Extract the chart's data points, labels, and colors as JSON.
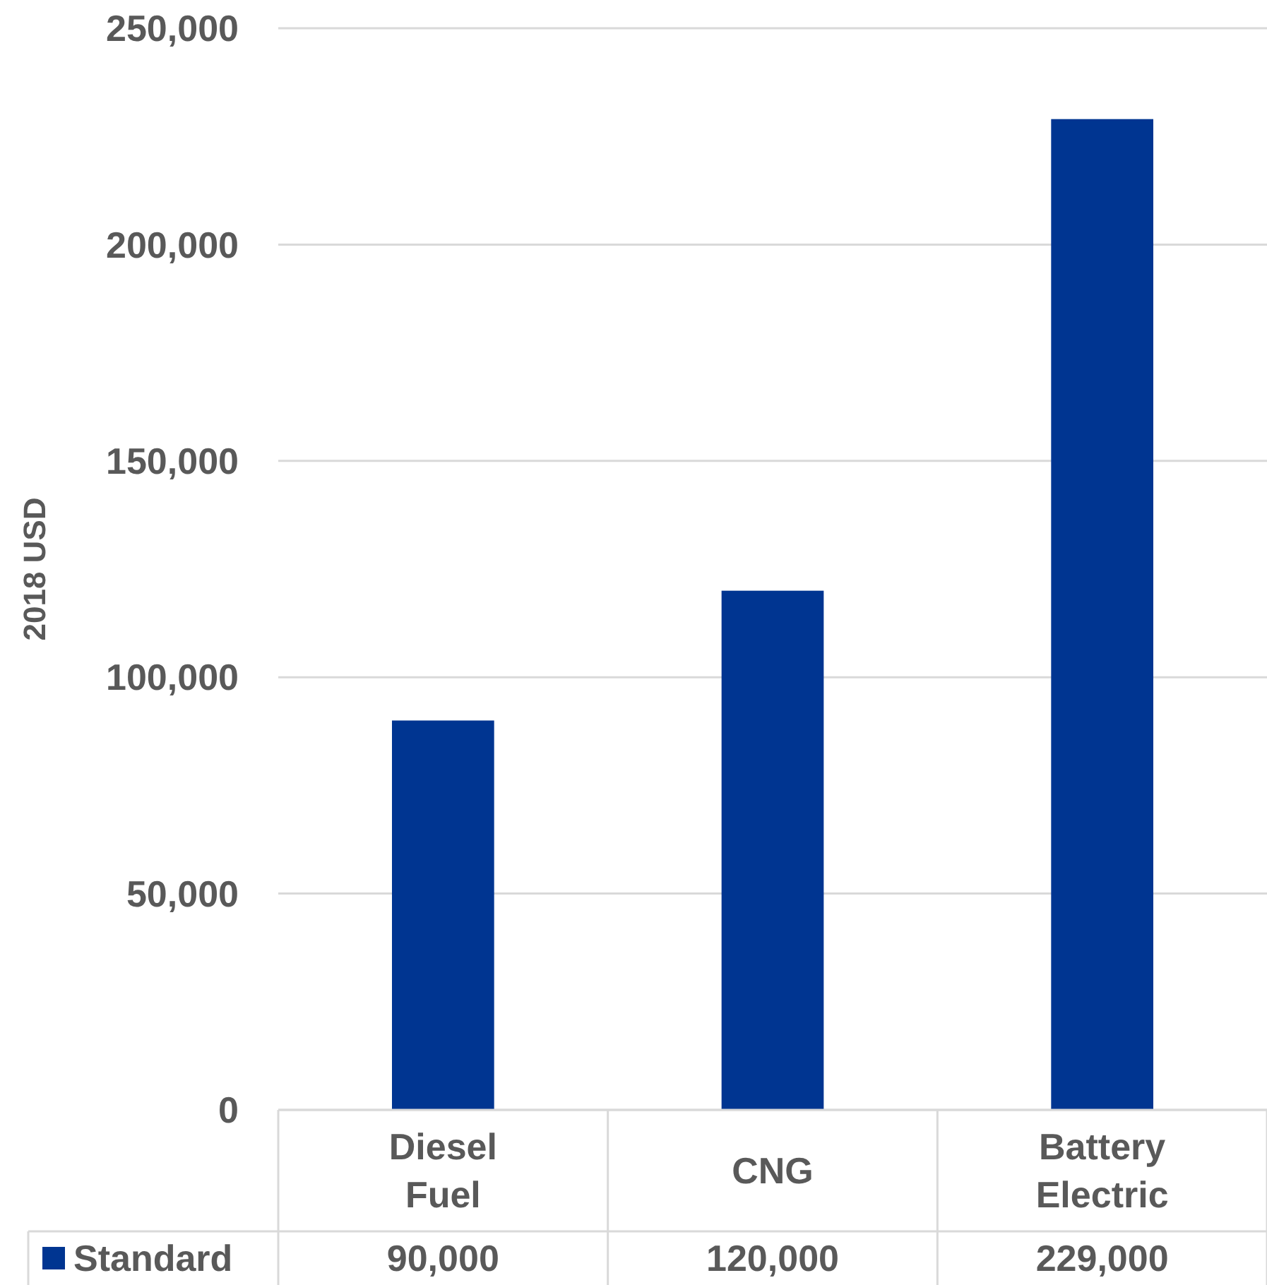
{
  "chart_data": {
    "type": "bar",
    "ylabel": "2018 USD",
    "categories": [
      "Diesel Fuel",
      "CNG",
      "Battery Electric"
    ],
    "series": [
      {
        "name": "Standard",
        "color": "#003591",
        "values": [
          90000,
          120000,
          229000
        ],
        "value_labels": [
          "90,000",
          "120,000",
          "229,000"
        ]
      }
    ],
    "ylim": [
      0,
      250000
    ],
    "yticks": [
      {
        "value": 0,
        "label": "0"
      },
      {
        "value": 50000,
        "label": "50,000"
      },
      {
        "value": 100000,
        "label": "100,000"
      },
      {
        "value": 150000,
        "label": "150,000"
      },
      {
        "value": 200000,
        "label": "200,000"
      },
      {
        "value": 250000,
        "label": "250,000"
      }
    ],
    "grid": "y",
    "legend": "bottom left"
  }
}
